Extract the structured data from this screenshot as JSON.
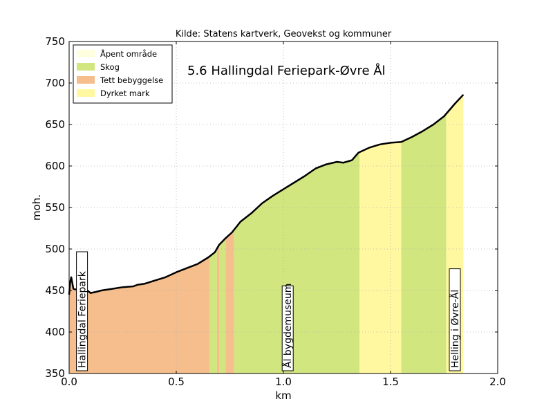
{
  "chart_data": {
    "type": "area",
    "source_text": "Kilde: Statens kartverk, Geovekst og kommuner",
    "title": "5.6 Hallingdal Feriepark-Øvre Ål",
    "xlabel": "km",
    "ylabel": "moh.",
    "xlim": [
      0,
      2.0
    ],
    "ylim": [
      350,
      750
    ],
    "xticks": [
      "0.0",
      "0.5",
      "1.0",
      "1.5",
      "2.0"
    ],
    "xtick_values": [
      0,
      0.5,
      1.0,
      1.5,
      2.0
    ],
    "yticks": [
      "350",
      "400",
      "450",
      "500",
      "550",
      "600",
      "650",
      "700",
      "750"
    ],
    "ytick_values": [
      350,
      400,
      450,
      500,
      550,
      600,
      650,
      700,
      750
    ],
    "grid": true,
    "legend_placement": "top-left",
    "legend": [
      {
        "name": "Åpent område",
        "color": "#ffffe0"
      },
      {
        "name": "Skog",
        "color": "#d2e680"
      },
      {
        "name": "Tett bebyggelse",
        "color": "#f5be8c"
      },
      {
        "name": "Dyrket mark",
        "color": "#fff8a0"
      }
    ],
    "landcover_segments": [
      {
        "class": "Tett bebyggelse",
        "from_km": 0.0,
        "to_km": 0.655
      },
      {
        "class": "Skog",
        "from_km": 0.655,
        "to_km": 0.69
      },
      {
        "class": "Tett bebyggelse",
        "from_km": 0.69,
        "to_km": 0.7
      },
      {
        "class": "Skog",
        "from_km": 0.7,
        "to_km": 0.73
      },
      {
        "class": "Tett bebyggelse",
        "from_km": 0.73,
        "to_km": 0.77
      },
      {
        "class": "Skog",
        "from_km": 0.77,
        "to_km": 1.355
      },
      {
        "class": "Dyrket mark",
        "from_km": 1.355,
        "to_km": 1.55
      },
      {
        "class": "Skog",
        "from_km": 1.55,
        "to_km": 1.76
      },
      {
        "class": "Dyrket mark",
        "from_km": 1.76,
        "to_km": 1.84
      }
    ],
    "profile": {
      "x": [
        0.0,
        0.005,
        0.01,
        0.02,
        0.05,
        0.08,
        0.1,
        0.12,
        0.15,
        0.2,
        0.25,
        0.3,
        0.32,
        0.35,
        0.4,
        0.45,
        0.5,
        0.55,
        0.6,
        0.65,
        0.68,
        0.7,
        0.73,
        0.76,
        0.8,
        0.85,
        0.9,
        0.95,
        1.0,
        1.05,
        1.1,
        1.15,
        1.2,
        1.25,
        1.28,
        1.32,
        1.35,
        1.4,
        1.45,
        1.5,
        1.55,
        1.6,
        1.65,
        1.7,
        1.75,
        1.8,
        1.84
      ],
      "y": [
        445,
        460,
        466,
        452,
        450,
        451,
        447,
        448,
        450,
        452,
        454,
        455,
        457,
        458,
        462,
        466,
        472,
        477,
        482,
        490,
        496,
        505,
        513,
        520,
        533,
        543,
        555,
        564,
        572,
        580,
        588,
        597,
        602,
        605,
        604,
        607,
        616,
        622,
        626,
        628,
        629,
        635,
        642,
        650,
        660,
        675,
        686
      ]
    },
    "place_labels": [
      {
        "text": "Hallingdal Feriepark",
        "km": 0.06
      },
      {
        "text": "Ål bygdemuseum",
        "km": 1.02
      },
      {
        "text": "Helling i Øvre-Ål",
        "km": 1.8
      }
    ]
  }
}
